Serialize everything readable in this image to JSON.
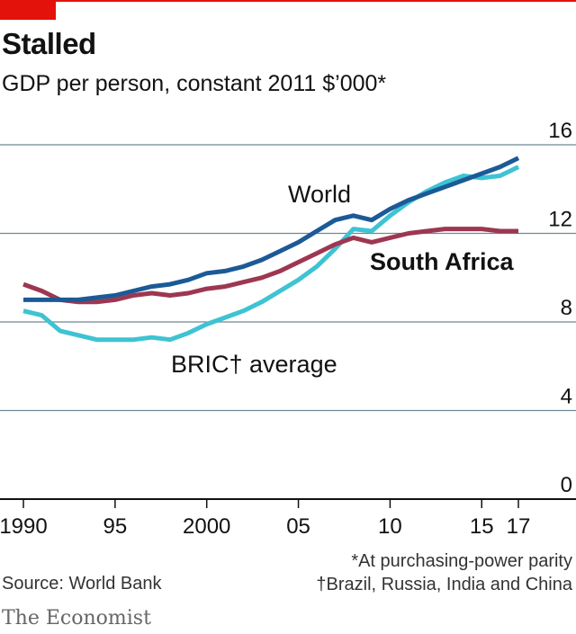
{
  "header": {
    "title": "Stalled",
    "subtitle": "GDP per person, constant 2011 $’000*"
  },
  "footer": {
    "source": "Source: World Bank",
    "note_ppp": "*At purchasing-power parity",
    "note_bric": "†Brazil, Russia, India and China",
    "brand": "The Economist"
  },
  "colors": {
    "accent": "#e3120b",
    "world": "#1b5a96",
    "south_africa": "#9d3751",
    "bric": "#3ec3d3",
    "grid": "#6f8694"
  },
  "chart_data": {
    "type": "line",
    "title": "Stalled",
    "subtitle": "GDP per person, constant 2011 $’000*",
    "xlabel": "",
    "ylabel": "",
    "x_tick_labels": [
      "1990",
      "95",
      "2000",
      "05",
      "10",
      "15",
      "17"
    ],
    "y_tick_labels": [
      "0",
      "4",
      "8",
      "12",
      "16"
    ],
    "xlim": [
      1989.5,
      2017
    ],
    "ylim": [
      0,
      16
    ],
    "y_ticks": [
      0,
      4,
      8,
      12,
      16
    ],
    "x_ticks": [
      1990,
      1995,
      2000,
      2005,
      2010,
      2015,
      2017
    ],
    "grid": true,
    "y_axis_side": "right",
    "x": [
      1990,
      1991,
      1992,
      1993,
      1994,
      1995,
      1996,
      1997,
      1998,
      1999,
      2000,
      2001,
      2002,
      2003,
      2004,
      2005,
      2006,
      2007,
      2008,
      2009,
      2010,
      2011,
      2012,
      2013,
      2014,
      2015,
      2016,
      2017
    ],
    "series": [
      {
        "name": "World",
        "color": "#1b5a96",
        "values": [
          9.0,
          9.0,
          9.0,
          9.0,
          9.1,
          9.2,
          9.4,
          9.6,
          9.7,
          9.9,
          10.2,
          10.3,
          10.5,
          10.8,
          11.2,
          11.6,
          12.1,
          12.6,
          12.8,
          12.6,
          13.1,
          13.5,
          13.8,
          14.1,
          14.4,
          14.7,
          15.0,
          15.4
        ]
      },
      {
        "name": "South Africa",
        "color": "#9d3751",
        "values": [
          9.7,
          9.4,
          9.0,
          8.9,
          8.9,
          9.0,
          9.2,
          9.3,
          9.2,
          9.3,
          9.5,
          9.6,
          9.8,
          10.0,
          10.3,
          10.7,
          11.1,
          11.5,
          11.8,
          11.6,
          11.8,
          12.0,
          12.1,
          12.2,
          12.2,
          12.2,
          12.1,
          12.1
        ]
      },
      {
        "name": "BRIC† average",
        "color": "#3ec3d3",
        "values": [
          8.5,
          8.3,
          7.6,
          7.4,
          7.2,
          7.2,
          7.2,
          7.3,
          7.2,
          7.5,
          7.9,
          8.2,
          8.5,
          8.9,
          9.4,
          9.9,
          10.5,
          11.3,
          12.2,
          12.1,
          12.8,
          13.4,
          13.9,
          14.3,
          14.6,
          14.5,
          14.6,
          15.0
        ]
      }
    ]
  }
}
